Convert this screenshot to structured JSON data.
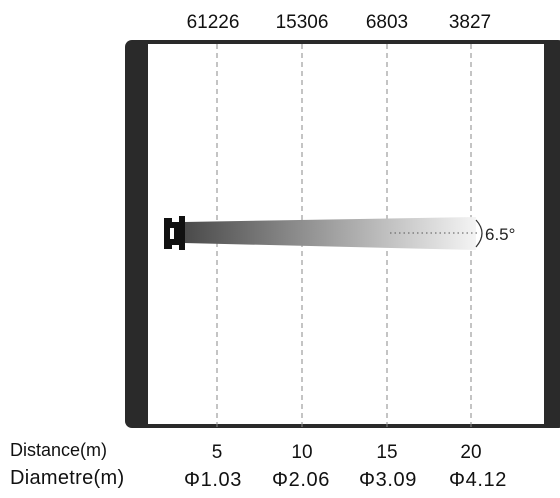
{
  "illuminance_values": [
    "61226",
    "15306",
    "6803",
    "3827"
  ],
  "beam_angle": "6.5°",
  "distance_label": "Distance(m)",
  "diameter_label": "Diametre(m)",
  "distances": [
    "5",
    "10",
    "15",
    "20"
  ],
  "diameters": [
    "Φ1.03",
    "Φ2.06",
    "Φ3.09",
    "Φ4.12"
  ],
  "colors": {
    "frame": "#2a2a2a",
    "beam_dark": "#4a4a4a",
    "beam_light": "#f2f2f2",
    "guide": "#8a8a8a"
  }
}
